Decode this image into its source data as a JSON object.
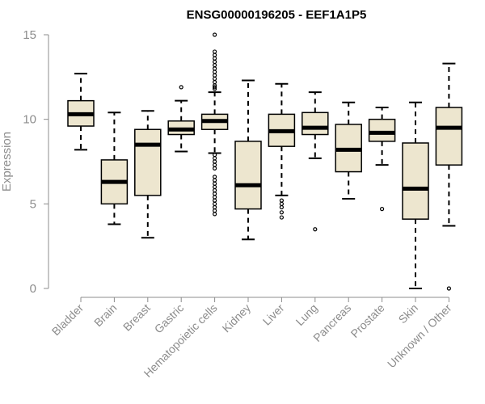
{
  "chart_data": {
    "type": "boxplot",
    "title": "ENSG00000196205 - EEF1A1P5",
    "xlabel": "",
    "ylabel": "Expression",
    "ylim": [
      0,
      15
    ],
    "yticks": [
      0,
      5,
      10,
      15
    ],
    "colors": {
      "box_fill": "#ede6cf",
      "stroke": "#000000",
      "axis": "#8c8c8c",
      "title": "#000000"
    },
    "categories": [
      "Bladder",
      "Brain",
      "Breast",
      "Gastric",
      "Hematopoietic cells",
      "Kidney",
      "Liver",
      "Lung",
      "Pancreas",
      "Prostate",
      "Skin",
      "Unknown / Other"
    ],
    "boxes": [
      {
        "category": "Bladder",
        "whisker_low": 8.2,
        "q1": 9.6,
        "median": 10.3,
        "q3": 11.1,
        "whisker_high": 12.7,
        "outliers": []
      },
      {
        "category": "Brain",
        "whisker_low": 3.8,
        "q1": 5.0,
        "median": 6.3,
        "q3": 7.6,
        "whisker_high": 10.4,
        "outliers": []
      },
      {
        "category": "Breast",
        "whisker_low": 3.0,
        "q1": 5.5,
        "median": 8.5,
        "q3": 9.4,
        "whisker_high": 10.5,
        "outliers": []
      },
      {
        "category": "Gastric",
        "whisker_low": 8.1,
        "q1": 9.1,
        "median": 9.4,
        "q3": 9.9,
        "whisker_high": 11.1,
        "outliers": [
          11.9
        ]
      },
      {
        "category": "Hematopoietic cells",
        "whisker_low": 8.0,
        "q1": 9.4,
        "median": 9.9,
        "q3": 10.3,
        "whisker_high": 11.6,
        "outliers": [
          15.0,
          14.0,
          13.8,
          13.6,
          13.4,
          13.2,
          13.0,
          12.8,
          12.6,
          12.4,
          12.2,
          12.0,
          11.9,
          11.8,
          7.9,
          7.7,
          7.5,
          7.3,
          7.1,
          6.6,
          6.4,
          6.2,
          6.0,
          5.8,
          5.6,
          5.4,
          5.2,
          5.0,
          4.8,
          4.6,
          4.4
        ]
      },
      {
        "category": "Kidney",
        "whisker_low": 2.9,
        "q1": 4.7,
        "median": 6.1,
        "q3": 8.7,
        "whisker_high": 12.3,
        "outliers": []
      },
      {
        "category": "Liver",
        "whisker_low": 5.5,
        "q1": 8.4,
        "median": 9.3,
        "q3": 10.3,
        "whisker_high": 12.1,
        "outliers": [
          5.2,
          5.0,
          4.8,
          4.5,
          4.2
        ]
      },
      {
        "category": "Lung",
        "whisker_low": 7.7,
        "q1": 9.1,
        "median": 9.5,
        "q3": 10.4,
        "whisker_high": 11.6,
        "outliers": [
          3.5
        ]
      },
      {
        "category": "Pancreas",
        "whisker_low": 5.3,
        "q1": 6.9,
        "median": 8.2,
        "q3": 9.7,
        "whisker_high": 11.0,
        "outliers": []
      },
      {
        "category": "Prostate",
        "whisker_low": 7.3,
        "q1": 8.7,
        "median": 9.2,
        "q3": 10.0,
        "whisker_high": 10.7,
        "outliers": [
          4.7
        ]
      },
      {
        "category": "Skin",
        "whisker_low": 0.0,
        "q1": 4.1,
        "median": 5.9,
        "q3": 8.6,
        "whisker_high": 11.0,
        "outliers": []
      },
      {
        "category": "Unknown / Other",
        "whisker_low": 3.7,
        "q1": 7.3,
        "median": 9.5,
        "q3": 10.7,
        "whisker_high": 13.3,
        "outliers": [
          0.0
        ]
      }
    ]
  }
}
